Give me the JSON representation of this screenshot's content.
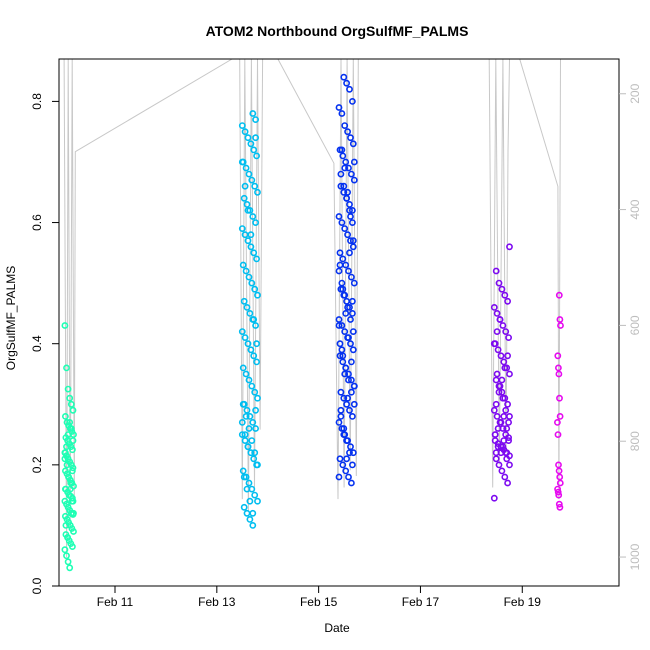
{
  "chart_data": {
    "type": "scatter",
    "title": "ATOM2 Northbound OrgSulfMF_PALMS",
    "xlabel": "Date",
    "ylabel": "OrgSulfMF_PALMS",
    "x_ticks": [
      "Feb 11",
      "Feb 13",
      "Feb 15",
      "Feb 17",
      "Feb 19"
    ],
    "x_tick_values": [
      11,
      13,
      15,
      17,
      19
    ],
    "xlim": [
      9.9,
      20.9
    ],
    "y_ticks": [
      "0.0",
      "0.2",
      "0.4",
      "0.6",
      "0.8"
    ],
    "y_tick_values": [
      0.0,
      0.2,
      0.4,
      0.6,
      0.8
    ],
    "ylim": [
      0.0,
      0.87
    ],
    "y2_ticks": [
      "200",
      "400",
      "600",
      "800",
      "1000"
    ],
    "y2_tick_values": [
      200,
      400,
      600,
      800,
      1000
    ],
    "y2lim": [
      1050,
      140
    ],
    "grid": false,
    "pressure_trace": [
      {
        "x": 10.0,
        "p": 140
      },
      {
        "x": 10.05,
        "p": 1000
      },
      {
        "x": 10.08,
        "p": 140
      },
      {
        "x": 10.12,
        "p": 950
      },
      {
        "x": 10.16,
        "p": 140
      },
      {
        "x": 10.2,
        "p": 900
      },
      {
        "x": 10.22,
        "p": 300
      },
      {
        "x": 13.3,
        "p": 140
      },
      {
        "x": 13.45,
        "p": 140
      },
      {
        "x": 13.5,
        "p": 900
      },
      {
        "x": 13.55,
        "p": 140
      },
      {
        "x": 13.62,
        "p": 920
      },
      {
        "x": 13.68,
        "p": 140
      },
      {
        "x": 13.74,
        "p": 880
      },
      {
        "x": 13.8,
        "p": 140
      },
      {
        "x": 13.85,
        "p": 780
      },
      {
        "x": 13.9,
        "p": 140
      },
      {
        "x": 14.2,
        "p": 140
      },
      {
        "x": 15.3,
        "p": 320
      },
      {
        "x": 15.38,
        "p": 900
      },
      {
        "x": 15.44,
        "p": 140
      },
      {
        "x": 15.5,
        "p": 880
      },
      {
        "x": 15.56,
        "p": 140
      },
      {
        "x": 15.62,
        "p": 850
      },
      {
        "x": 15.68,
        "p": 140
      },
      {
        "x": 15.74,
        "p": 860
      },
      {
        "x": 15.78,
        "p": 140
      },
      {
        "x": 18.2,
        "p": 140
      },
      {
        "x": 18.35,
        "p": 140
      },
      {
        "x": 18.42,
        "p": 880
      },
      {
        "x": 18.48,
        "p": 140
      },
      {
        "x": 18.55,
        "p": 840
      },
      {
        "x": 18.62,
        "p": 140
      },
      {
        "x": 18.68,
        "p": 820
      },
      {
        "x": 18.72,
        "p": 300
      },
      {
        "x": 18.75,
        "p": 140
      },
      {
        "x": 18.95,
        "p": 140
      },
      {
        "x": 19.7,
        "p": 360
      },
      {
        "x": 19.72,
        "p": 900
      },
      {
        "x": 19.75,
        "p": 140
      }
    ],
    "series": [
      {
        "color": "#1effb4",
        "x_center": 10.1,
        "x_spread": 0.17,
        "values": [
          0.43,
          0.36,
          0.325,
          0.31,
          0.3,
          0.29,
          0.28,
          0.27,
          0.265,
          0.26,
          0.255,
          0.25,
          0.245,
          0.24,
          0.235,
          0.23,
          0.225,
          0.22,
          0.215,
          0.21,
          0.205,
          0.2,
          0.195,
          0.19,
          0.185,
          0.18,
          0.175,
          0.17,
          0.165,
          0.16,
          0.155,
          0.15,
          0.148,
          0.145,
          0.14,
          0.135,
          0.13,
          0.125,
          0.12,
          0.118,
          0.115,
          0.11,
          0.105,
          0.1,
          0.095,
          0.09,
          0.085,
          0.08,
          0.075,
          0.07,
          0.065,
          0.06,
          0.05,
          0.04,
          0.03,
          0.26,
          0.24,
          0.22,
          0.2,
          0.18,
          0.16,
          0.14,
          0.12,
          0.1,
          0.08,
          0.15,
          0.17,
          0.19,
          0.21,
          0.23,
          0.25,
          0.27,
          0.12,
          0.14,
          0.16
        ]
      },
      {
        "color": "#00bef0",
        "x_center": 13.65,
        "x_spread": 0.3,
        "values": [
          0.78,
          0.77,
          0.76,
          0.75,
          0.74,
          0.73,
          0.72,
          0.71,
          0.7,
          0.69,
          0.68,
          0.67,
          0.66,
          0.65,
          0.64,
          0.63,
          0.62,
          0.61,
          0.6,
          0.59,
          0.58,
          0.57,
          0.56,
          0.55,
          0.54,
          0.53,
          0.52,
          0.51,
          0.5,
          0.49,
          0.48,
          0.47,
          0.46,
          0.45,
          0.44,
          0.43,
          0.42,
          0.41,
          0.4,
          0.39,
          0.38,
          0.37,
          0.36,
          0.35,
          0.34,
          0.33,
          0.32,
          0.31,
          0.3,
          0.29,
          0.28,
          0.27,
          0.26,
          0.25,
          0.24,
          0.23,
          0.22,
          0.21,
          0.2,
          0.19,
          0.18,
          0.17,
          0.16,
          0.15,
          0.14,
          0.13,
          0.12,
          0.11,
          0.1,
          0.74,
          0.7,
          0.66,
          0.62,
          0.58,
          0.44,
          0.4,
          0.3,
          0.28,
          0.26,
          0.24,
          0.22,
          0.2,
          0.18,
          0.16,
          0.14,
          0.12,
          0.29,
          0.27,
          0.25,
          0.23
        ]
      },
      {
        "color": "#0532f0",
        "x_center": 15.55,
        "x_spread": 0.3,
        "values": [
          0.84,
          0.83,
          0.82,
          0.8,
          0.79,
          0.78,
          0.76,
          0.75,
          0.74,
          0.73,
          0.72,
          0.71,
          0.7,
          0.69,
          0.68,
          0.67,
          0.66,
          0.65,
          0.64,
          0.63,
          0.62,
          0.61,
          0.6,
          0.59,
          0.58,
          0.57,
          0.56,
          0.55,
          0.54,
          0.53,
          0.52,
          0.51,
          0.5,
          0.49,
          0.48,
          0.47,
          0.46,
          0.45,
          0.44,
          0.43,
          0.42,
          0.41,
          0.4,
          0.39,
          0.38,
          0.37,
          0.36,
          0.35,
          0.34,
          0.33,
          0.32,
          0.31,
          0.3,
          0.29,
          0.28,
          0.27,
          0.26,
          0.25,
          0.24,
          0.23,
          0.22,
          0.21,
          0.2,
          0.19,
          0.18,
          0.17,
          0.7,
          0.68,
          0.66,
          0.64,
          0.62,
          0.6,
          0.52,
          0.5,
          0.48,
          0.46,
          0.44,
          0.42,
          0.4,
          0.38,
          0.36,
          0.34,
          0.32,
          0.3,
          0.28,
          0.26,
          0.24,
          0.22,
          0.2,
          0.18,
          0.72,
          0.69,
          0.65,
          0.61,
          0.57,
          0.53,
          0.49,
          0.45,
          0.41,
          0.37,
          0.33,
          0.29,
          0.25,
          0.21,
          0.55,
          0.47,
          0.43,
          0.39,
          0.35,
          0.31
        ]
      },
      {
        "color": "#7d0af0",
        "x_center": 18.6,
        "x_spread": 0.3,
        "values": [
          0.56,
          0.52,
          0.5,
          0.49,
          0.48,
          0.47,
          0.46,
          0.45,
          0.44,
          0.43,
          0.42,
          0.41,
          0.4,
          0.39,
          0.38,
          0.37,
          0.36,
          0.35,
          0.34,
          0.33,
          0.32,
          0.31,
          0.3,
          0.29,
          0.28,
          0.27,
          0.26,
          0.25,
          0.245,
          0.24,
          0.235,
          0.23,
          0.225,
          0.22,
          0.215,
          0.21,
          0.2,
          0.19,
          0.18,
          0.17,
          0.145,
          0.35,
          0.33,
          0.31,
          0.29,
          0.27,
          0.25,
          0.23,
          0.22,
          0.24,
          0.26,
          0.28,
          0.3,
          0.32,
          0.34,
          0.36,
          0.38,
          0.4,
          0.42,
          0.44,
          0.23,
          0.22,
          0.24,
          0.25,
          0.26,
          0.27,
          0.28,
          0.21,
          0.2,
          0.22
        ]
      },
      {
        "color": "#e60af0",
        "x_center": 19.72,
        "x_spread": 0.06,
        "values": [
          0.48,
          0.44,
          0.43,
          0.38,
          0.36,
          0.35,
          0.31,
          0.28,
          0.27,
          0.25,
          0.2,
          0.19,
          0.18,
          0.17,
          0.16,
          0.155,
          0.15,
          0.135,
          0.13
        ]
      }
    ]
  }
}
